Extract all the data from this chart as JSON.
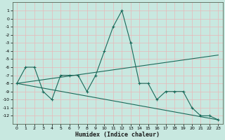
{
  "xlabel": "Humidex (Indice chaleur)",
  "background_color": "#c8e8e0",
  "grid_color": "#e8b8b8",
  "line_color": "#1a6a5a",
  "x_data": [
    0,
    1,
    2,
    3,
    4,
    5,
    6,
    7,
    8,
    9,
    10,
    11,
    12,
    13,
    14,
    15,
    16,
    17,
    18,
    19,
    20,
    21,
    22,
    23
  ],
  "y_main": [
    -8,
    -6,
    -6,
    -9,
    -10,
    -7,
    -7,
    -7,
    -9,
    -7,
    -4,
    -1,
    1,
    -3,
    -8,
    -8,
    -10,
    -9,
    -9,
    -9,
    -11,
    -12,
    -12,
    -12.5
  ],
  "y_line1_x": [
    0,
    23
  ],
  "y_line1_y": [
    -8,
    -4.5
  ],
  "y_line2_x": [
    0,
    23
  ],
  "y_line2_y": [
    -8,
    -12.5
  ],
  "ylim": [
    -13,
    2
  ],
  "xlim": [
    -0.5,
    23.5
  ],
  "yticks": [
    1,
    0,
    -1,
    -2,
    -3,
    -4,
    -5,
    -6,
    -7,
    -8,
    -9,
    -10,
    -11,
    -12
  ],
  "xticks": [
    0,
    1,
    2,
    3,
    4,
    5,
    6,
    7,
    8,
    9,
    10,
    11,
    12,
    13,
    14,
    15,
    16,
    17,
    18,
    19,
    20,
    21,
    22,
    23
  ],
  "tick_fontsize": 4.5,
  "xlabel_fontsize": 6
}
